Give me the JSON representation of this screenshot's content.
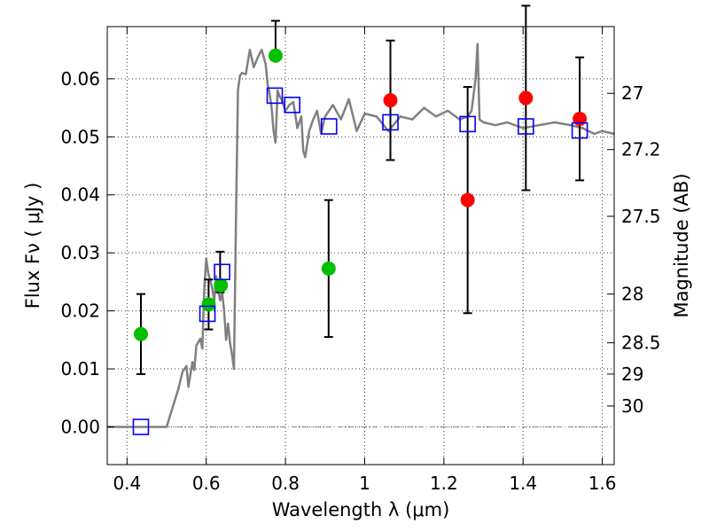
{
  "chart_data": {
    "type": "scatter",
    "title": "",
    "xlabel": "Wavelength  λ (μm)",
    "ylabel": "Flux  Fν  ( μJy )",
    "y2label": "Magnitude (AB)",
    "xlim": [
      0.35,
      1.63
    ],
    "ylim": [
      -0.0065,
      0.069
    ],
    "grid": true,
    "x_ticks": [
      0.4,
      0.6,
      0.8,
      1.0,
      1.2,
      1.4,
      1.6
    ],
    "x_tick_labels": [
      "0.4",
      "0.6",
      "0.8",
      "1",
      "1.2",
      "1.4",
      "1.6"
    ],
    "y_ticks": [
      0.0,
      0.01,
      0.02,
      0.03,
      0.04,
      0.05,
      0.06
    ],
    "y_tick_labels": [
      "0.00",
      "0.01",
      "0.02",
      "0.03",
      "0.04",
      "0.05",
      "0.06"
    ],
    "y2_ticks": [
      {
        "label": "27",
        "flux": 0.0575
      },
      {
        "label": "27.2",
        "flux": 0.0478
      },
      {
        "label": "27.5",
        "flux": 0.0363
      },
      {
        "label": "28",
        "flux": 0.0229
      },
      {
        "label": "28.5",
        "flux": 0.0145
      },
      {
        "label": "29",
        "flux": 0.0091
      },
      {
        "label": "30",
        "flux": 0.0036
      }
    ],
    "series": [
      {
        "kind": "line",
        "color": "#808080",
        "x": [
          0.35,
          0.5,
          0.53,
          0.54,
          0.55,
          0.555,
          0.565,
          0.57,
          0.575,
          0.585,
          0.59,
          0.595,
          0.6,
          0.605,
          0.615,
          0.62,
          0.625,
          0.63,
          0.635,
          0.64,
          0.645,
          0.65,
          0.655,
          0.66,
          0.665,
          0.67,
          0.675,
          0.68,
          0.685,
          0.69,
          0.7,
          0.71,
          0.72,
          0.73,
          0.74,
          0.75,
          0.755,
          0.76,
          0.765,
          0.77,
          0.775,
          0.78,
          0.785,
          0.79,
          0.8,
          0.81,
          0.82,
          0.83,
          0.84,
          0.845,
          0.85,
          0.86,
          0.87,
          0.88,
          0.89,
          0.9,
          0.92,
          0.94,
          0.96,
          0.98,
          1.0,
          1.03,
          1.06,
          1.09,
          1.12,
          1.15,
          1.18,
          1.21,
          1.24,
          1.26,
          1.27,
          1.28,
          1.285,
          1.29,
          1.3,
          1.33,
          1.36,
          1.4,
          1.44,
          1.48,
          1.52,
          1.55,
          1.58,
          1.6,
          1.63
        ],
        "y": [
          0.0,
          0.0,
          0.0066,
          0.0095,
          0.0105,
          0.0069,
          0.0112,
          0.0098,
          0.014,
          0.0152,
          0.0135,
          0.024,
          0.029,
          0.0265,
          0.024,
          0.0215,
          0.026,
          0.0235,
          0.0218,
          0.0232,
          0.0202,
          0.015,
          0.0178,
          0.0145,
          0.0125,
          0.01,
          0.035,
          0.058,
          0.0605,
          0.061,
          0.0608,
          0.065,
          0.062,
          0.0637,
          0.065,
          0.0625,
          0.059,
          0.0575,
          0.055,
          0.051,
          0.049,
          0.058,
          0.057,
          0.0565,
          0.0545,
          0.0555,
          0.056,
          0.0515,
          0.0535,
          0.0475,
          0.0465,
          0.051,
          0.053,
          0.0545,
          0.0505,
          0.0535,
          0.0555,
          0.053,
          0.0565,
          0.051,
          0.054,
          0.0535,
          0.051,
          0.0535,
          0.053,
          0.055,
          0.0535,
          0.0545,
          0.053,
          0.0535,
          0.0545,
          0.06,
          0.066,
          0.053,
          0.0525,
          0.052,
          0.0525,
          0.0515,
          0.052,
          0.0525,
          0.052,
          0.0515,
          0.0505,
          0.051,
          0.0505
        ]
      },
      {
        "kind": "markers",
        "marker": "circle",
        "color": "#00c000",
        "x": [
          0.435,
          0.606,
          0.637,
          0.775,
          0.909
        ],
        "y": [
          0.016,
          0.0211,
          0.0244,
          0.064,
          0.0273
        ],
        "err_low": [
          0.0069,
          0.0043,
          0.0,
          0.0,
          0.0118
        ],
        "err_high": [
          0.0069,
          0.0043,
          0.0,
          0.0,
          0.0118
        ]
      },
      {
        "kind": "markers",
        "marker": "circle",
        "color": "#ff0000",
        "x": [
          1.065,
          1.26,
          1.407,
          1.543
        ],
        "y": [
          0.0563,
          0.0391,
          0.0567,
          0.0531
        ],
        "err_low": [
          0.0103,
          0.0195,
          0.0159,
          0.0106
        ],
        "err_high": [
          0.0103,
          0.0195,
          0.0159,
          0.0106
        ]
      },
      {
        "kind": "markers",
        "marker": "square",
        "color": "#0000ff",
        "x": [
          0.435,
          0.603,
          0.64,
          0.773,
          0.817,
          0.91,
          1.065,
          1.26,
          1.407,
          1.543
        ],
        "y": [
          0.0,
          0.0195,
          0.0267,
          0.0571,
          0.0555,
          0.0518,
          0.0525,
          0.0522,
          0.0518,
          0.0511
        ]
      },
      {
        "kind": "errorbars",
        "color": "#000000",
        "x": [
          0.635,
          0.775
        ],
        "y": [
          0.0267,
          0.064
        ],
        "err_low": [
          0.0035,
          0.0
        ],
        "err_high": [
          0.0035,
          0.006
        ]
      }
    ]
  }
}
